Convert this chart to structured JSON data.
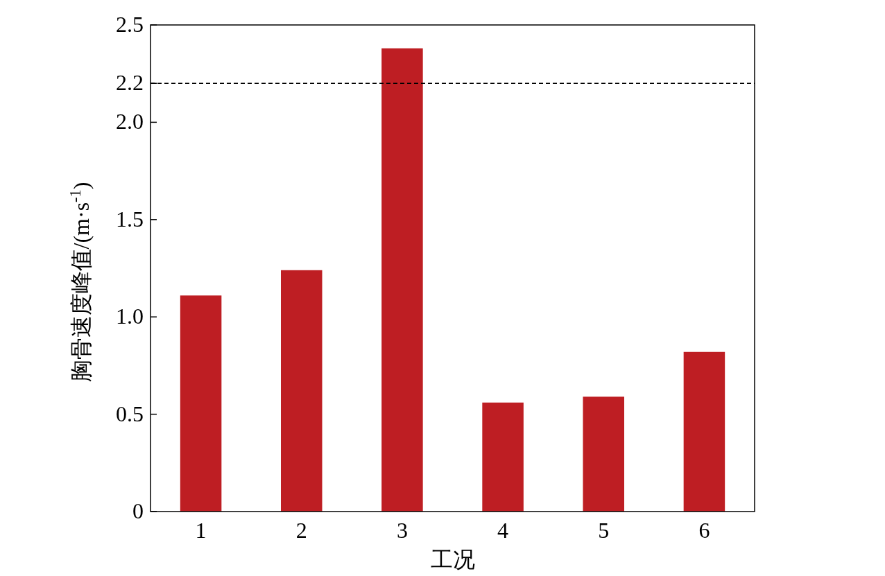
{
  "chart_data": {
    "type": "bar",
    "categories": [
      "1",
      "2",
      "3",
      "4",
      "5",
      "6"
    ],
    "values": [
      1.11,
      1.24,
      2.38,
      0.56,
      0.59,
      0.82
    ],
    "color": "#be1e23",
    "xlabel": "工况",
    "ylabel": "胸骨速度峰值/(m·s$^{-1}$)",
    "ylim": [
      0,
      2.5
    ],
    "yticks": [
      0,
      0.5,
      {
        "value": 1,
        "label": "1.0"
      },
      1.5,
      {
        "value": 2,
        "label": "2.0"
      },
      2.2,
      2.5
    ],
    "ref_lines": [
      {
        "axis": "y",
        "value": 2.2,
        "line_style": "dashed",
        "color": "#000000"
      }
    ]
  }
}
